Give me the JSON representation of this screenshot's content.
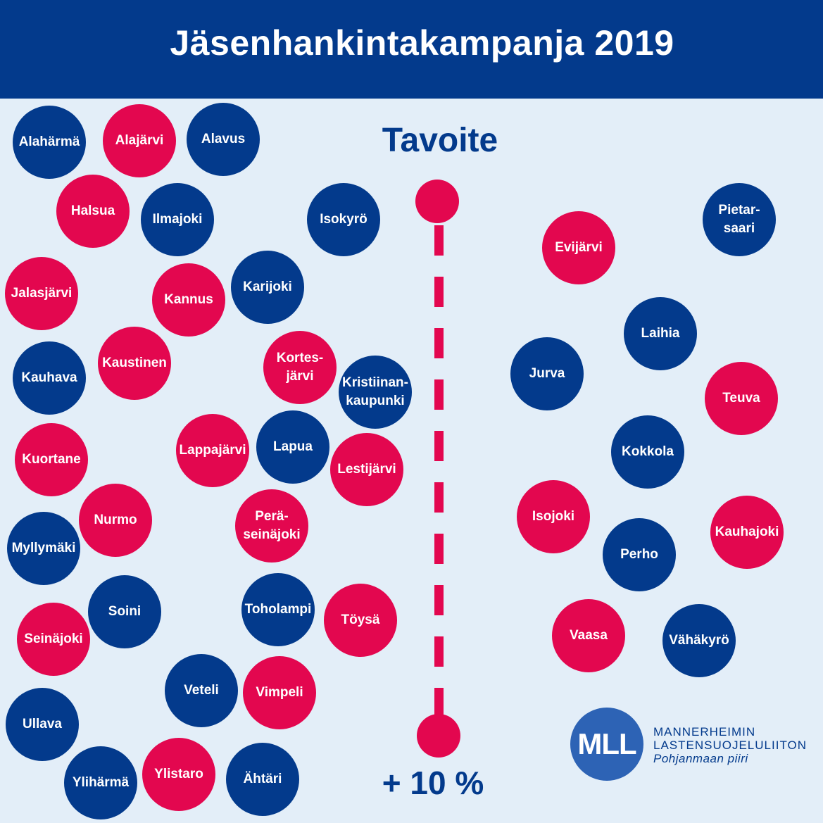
{
  "header": {
    "title": "Jäsenhankintakampanja 2019"
  },
  "goal": {
    "title": "Tavoite",
    "value": "+ 10 %"
  },
  "colors": {
    "blue": "#033a8c",
    "red": "#e3074f",
    "background": "#e3eef8"
  },
  "municipalities": [
    {
      "name": "Alahärmä",
      "color": "blue"
    },
    {
      "name": "Alajärvi",
      "color": "red"
    },
    {
      "name": "Alavus",
      "color": "blue"
    },
    {
      "name": "Halsua",
      "color": "red"
    },
    {
      "name": "Ilmajoki",
      "color": "blue"
    },
    {
      "name": "Isokyrö",
      "color": "blue"
    },
    {
      "name": "Jalasjärvi",
      "color": "red"
    },
    {
      "name": "Kannus",
      "color": "red"
    },
    {
      "name": "Karijoki",
      "color": "blue"
    },
    {
      "name": "Kauhava",
      "color": "blue"
    },
    {
      "name": "Kaustinen",
      "color": "red"
    },
    {
      "name": "Kortes-\njärvi",
      "color": "red"
    },
    {
      "name": "Kristiinan-\nkaupunki",
      "color": "blue"
    },
    {
      "name": "Kuortane",
      "color": "red"
    },
    {
      "name": "Lappajärvi",
      "color": "red"
    },
    {
      "name": "Lapua",
      "color": "blue"
    },
    {
      "name": "Lestijärvi",
      "color": "red"
    },
    {
      "name": "Nurmo",
      "color": "red"
    },
    {
      "name": "Myllymäki",
      "color": "blue"
    },
    {
      "name": "Perä-\nseinäjoki",
      "color": "red"
    },
    {
      "name": "Soini",
      "color": "blue"
    },
    {
      "name": "Seinäjoki",
      "color": "red"
    },
    {
      "name": "Toholampi",
      "color": "blue"
    },
    {
      "name": "Töysä",
      "color": "red"
    },
    {
      "name": "Veteli",
      "color": "blue"
    },
    {
      "name": "Vimpeli",
      "color": "red"
    },
    {
      "name": "Ullava",
      "color": "blue"
    },
    {
      "name": "Ylihärmä",
      "color": "blue"
    },
    {
      "name": "Ylistaro",
      "color": "red"
    },
    {
      "name": "Ähtäri",
      "color": "blue"
    },
    {
      "name": "Pietar-\nsaari",
      "color": "blue"
    },
    {
      "name": "Evijärvi",
      "color": "red"
    },
    {
      "name": "Laihia",
      "color": "blue"
    },
    {
      "name": "Jurva",
      "color": "blue"
    },
    {
      "name": "Teuva",
      "color": "red"
    },
    {
      "name": "Kokkola",
      "color": "blue"
    },
    {
      "name": "Isojoki",
      "color": "red"
    },
    {
      "name": "Kauhajoki",
      "color": "red"
    },
    {
      "name": "Perho",
      "color": "blue"
    },
    {
      "name": "Vaasa",
      "color": "red"
    },
    {
      "name": "Vähäkyrö",
      "color": "blue"
    }
  ],
  "logo": {
    "badge": "MLL",
    "line1": "MANNERHEIMIN",
    "line2": "LASTENSUOJELULIITON",
    "line3": "Pohjanmaan piiri"
  }
}
